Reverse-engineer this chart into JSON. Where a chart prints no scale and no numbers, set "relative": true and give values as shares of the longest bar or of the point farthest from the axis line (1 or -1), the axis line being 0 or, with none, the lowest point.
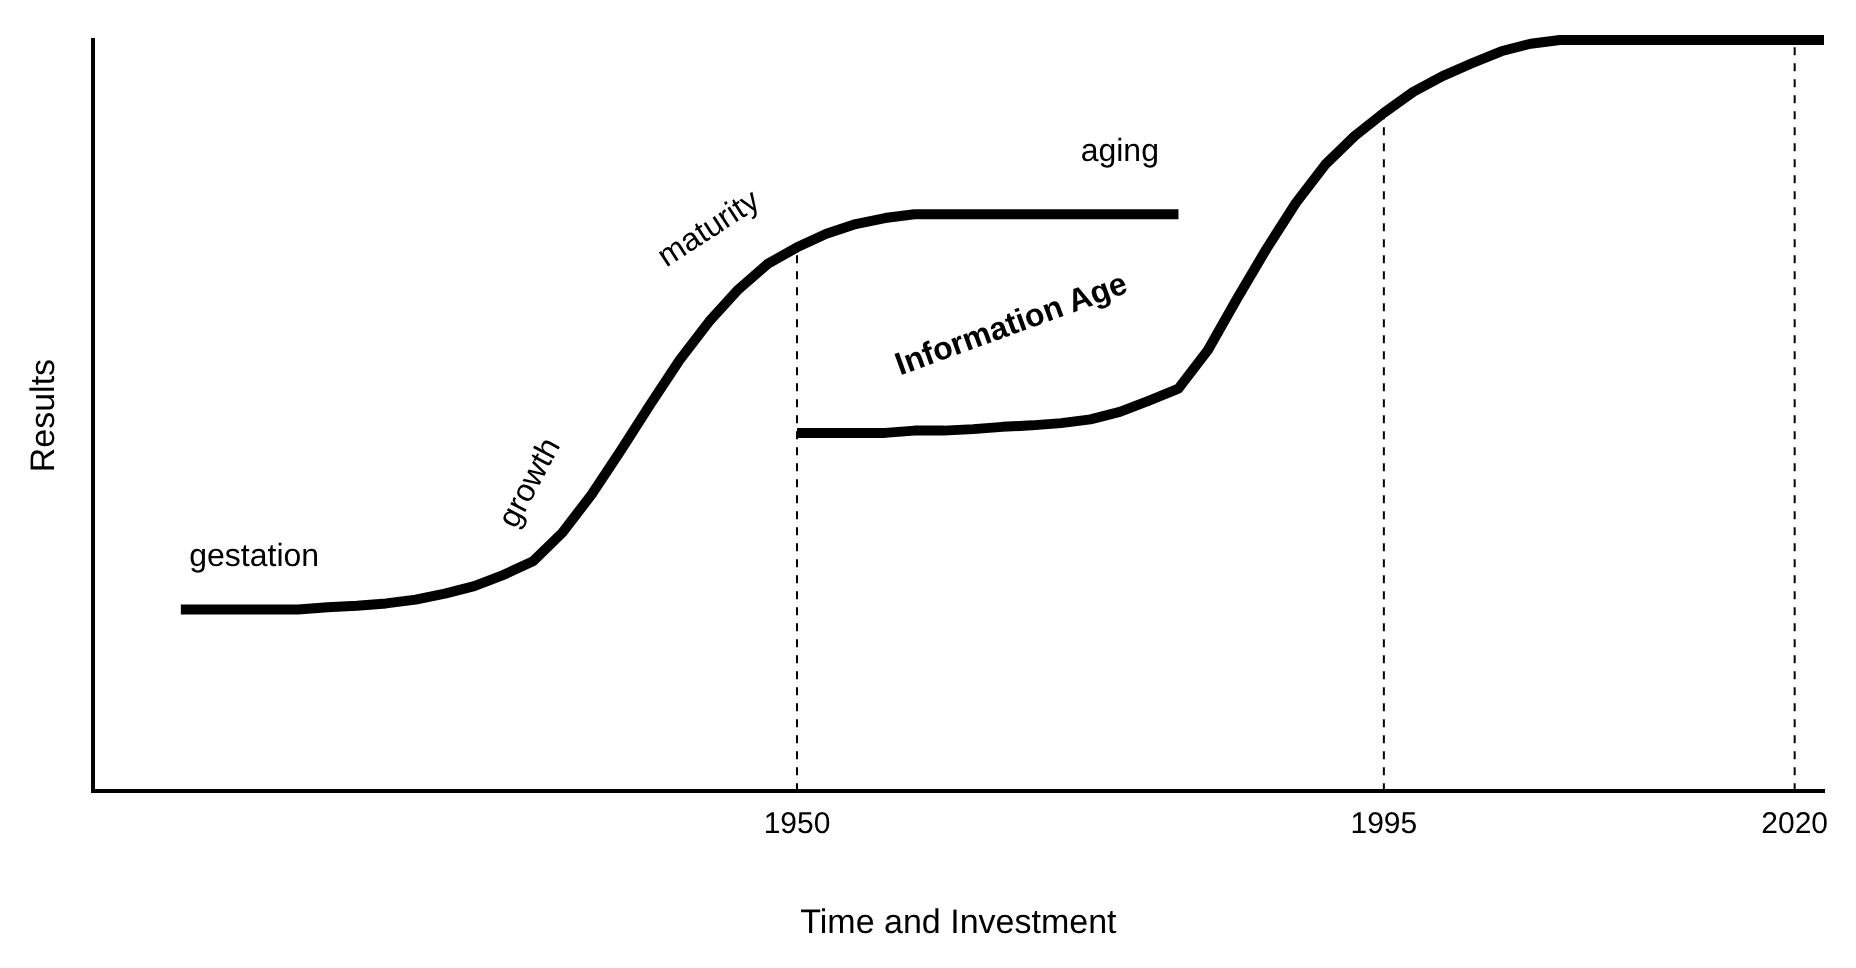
{
  "chart_data": {
    "type": "line",
    "relative": true,
    "xlabel": "Time and Investment",
    "ylabel": "Results",
    "categories": [
      null,
      null,
      null,
      null,
      null,
      null,
      null,
      null,
      null,
      null,
      null,
      null,
      null,
      null,
      null,
      null,
      null,
      null,
      null,
      null,
      null,
      null,
      null,
      null,
      "1950",
      null,
      null,
      null,
      null,
      null,
      null,
      null,
      null,
      null,
      null,
      null,
      null,
      null,
      null,
      null,
      null,
      null,
      null,
      null,
      "1995",
      null,
      null,
      null,
      null,
      null,
      null,
      null,
      null,
      null,
      null,
      null,
      null,
      null,
      "2020",
      null
    ],
    "series": [
      {
        "color": "#000000",
        "values": [
          null,
          null,
          null,
          0.242,
          0.242,
          0.242,
          0.242,
          0.242,
          0.245,
          0.247,
          0.25,
          0.255,
          0.263,
          0.273,
          0.288,
          0.306,
          0.344,
          0.395,
          0.454,
          0.515,
          0.574,
          0.625,
          0.668,
          0.702,
          0.724,
          0.742,
          0.755,
          0.763,
          0.768,
          0.768,
          0.768,
          0.768,
          0.768,
          0.768,
          0.768,
          0.768,
          0.768,
          0.768,
          null,
          null,
          null,
          null,
          null,
          null,
          null,
          null,
          null,
          null,
          null,
          null,
          null,
          null,
          null,
          null,
          null,
          null,
          null,
          null,
          null,
          null
        ]
      },
      {
        "color": "#000000",
        "values": [
          null,
          null,
          null,
          null,
          null,
          null,
          null,
          null,
          null,
          null,
          null,
          null,
          null,
          null,
          null,
          null,
          null,
          null,
          null,
          null,
          null,
          null,
          null,
          null,
          0.477,
          0.477,
          0.477,
          0.477,
          0.48,
          0.48,
          0.482,
          0.485,
          0.487,
          0.49,
          0.495,
          0.505,
          0.52,
          0.536,
          0.587,
          0.656,
          0.722,
          0.783,
          0.834,
          0.872,
          0.903,
          0.931,
          0.952,
          0.969,
          0.985,
          0.995,
          1,
          1,
          1,
          1,
          1,
          1,
          1,
          1,
          1,
          1
        ]
      }
    ],
    "ref_lines": [
      {
        "axis": "x",
        "value": "1950",
        "color": "#000000",
        "line_style": "dashed"
      },
      {
        "axis": "x",
        "value": "1995",
        "color": "#000000",
        "line_style": "dashed"
      },
      {
        "axis": "x",
        "value": "2020",
        "color": "#000000",
        "line_style": "dashed"
      }
    ],
    "annotations": [
      "gestation",
      "growth",
      "maturity",
      "aging",
      "Information Age"
    ],
    "grid": false,
    "legend": false,
    "marker": "none",
    "line_style": "solid"
  }
}
